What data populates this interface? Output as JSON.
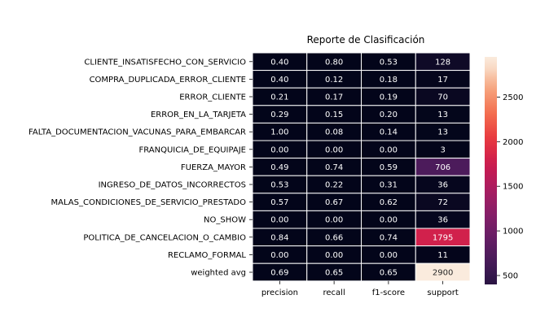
{
  "chart_data": {
    "type": "heatmap",
    "title": "Reporte de Clasificación",
    "columns": [
      "precision",
      "recall",
      "f1-score",
      "support"
    ],
    "rows": [
      {
        "label": "CLIENTE_INSATISFECHO_CON_SERVICIO",
        "values": [
          0.4,
          0.8,
          0.53,
          128
        ]
      },
      {
        "label": "COMPRA_DUPLICADA_ERROR_CLIENTE",
        "values": [
          0.4,
          0.12,
          0.18,
          17
        ]
      },
      {
        "label": "ERROR_CLIENTE",
        "values": [
          0.21,
          0.17,
          0.19,
          70
        ]
      },
      {
        "label": "ERROR_EN_LA_TARJETA",
        "values": [
          0.29,
          0.15,
          0.2,
          13
        ]
      },
      {
        "label": "FALTA_DOCUMENTACION_VACUNAS_PARA_EMBARCAR",
        "values": [
          1.0,
          0.08,
          0.14,
          13
        ]
      },
      {
        "label": "FRANQUICIA_DE_EQUIPAJE",
        "values": [
          0.0,
          0.0,
          0.0,
          3
        ]
      },
      {
        "label": "FUERZA_MAYOR",
        "values": [
          0.49,
          0.74,
          0.59,
          706
        ]
      },
      {
        "label": "INGRESO_DE_DATOS_INCORRECTOS",
        "values": [
          0.53,
          0.22,
          0.31,
          36
        ]
      },
      {
        "label": "MALAS_CONDICIONES_DE_SERVICIO_PRESTADO",
        "values": [
          0.57,
          0.67,
          0.62,
          72
        ]
      },
      {
        "label": "NO_SHOW",
        "values": [
          0.0,
          0.0,
          0.0,
          36
        ]
      },
      {
        "label": "POLITICA_DE_CANCELACION_O_CAMBIO",
        "values": [
          0.84,
          0.66,
          0.74,
          1795
        ]
      },
      {
        "label": "RECLAMO_FORMAL",
        "values": [
          0.0,
          0.0,
          0.0,
          11
        ]
      },
      {
        "label": "weighted avg",
        "values": [
          0.69,
          0.65,
          0.65,
          2900
        ]
      }
    ],
    "value_format": [
      "0.00",
      "0.00",
      "0.00",
      "integer"
    ],
    "colorscale": "rocket",
    "color_range": [
      0,
      2900
    ],
    "colorbar": {
      "ticks": [
        500,
        1000,
        1500,
        2000,
        2500
      ],
      "range": [
        400,
        2950
      ]
    },
    "grid_lines": "white"
  }
}
